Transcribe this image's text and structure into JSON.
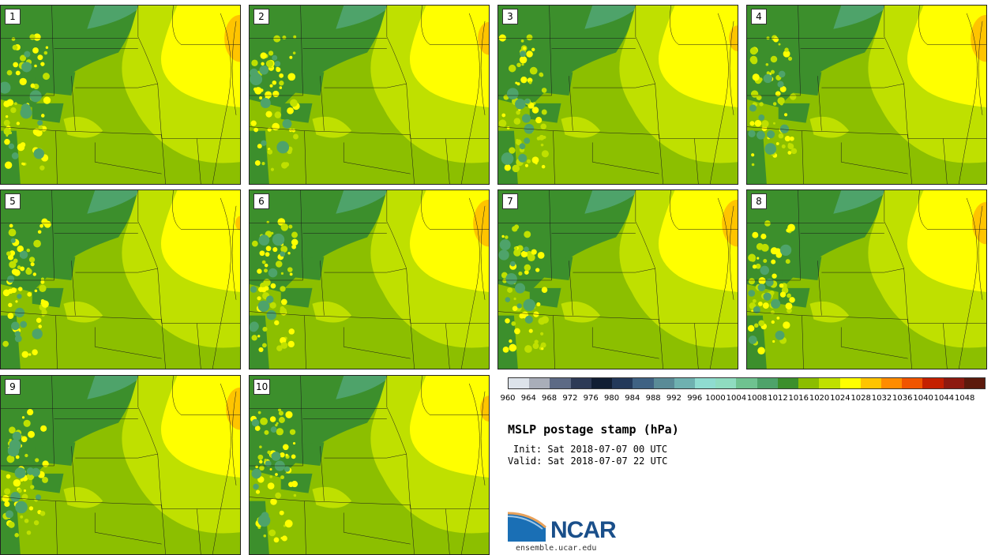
{
  "panels": [
    {
      "label": "1",
      "high": 1.0
    },
    {
      "label": "2",
      "high": 0.7
    },
    {
      "label": "3",
      "high": 0.55
    },
    {
      "label": "4",
      "high": 1.0
    },
    {
      "label": "5",
      "high": 0.3
    },
    {
      "label": "6",
      "high": 1.0
    },
    {
      "label": "7",
      "high": 1.0
    },
    {
      "label": "8",
      "high": 0.9
    },
    {
      "label": "9",
      "high": 0.9
    },
    {
      "label": "10",
      "high": 0.55
    }
  ],
  "colorbar": {
    "colors": [
      "#dde3ea",
      "#a9aeb9",
      "#5d6a85",
      "#2d3a56",
      "#111e33",
      "#23395a",
      "#3f6283",
      "#5a8b97",
      "#6fb1b0",
      "#8fdcd0",
      "#8fdcc0",
      "#6fc290",
      "#4ea36a",
      "#3c8f2c",
      "#8bbd00",
      "#bfe000",
      "#ffff00",
      "#ffc400",
      "#ff8c00",
      "#f05500",
      "#c42000",
      "#8d1a10",
      "#5c1a0c"
    ],
    "ticks": [
      "960",
      "964",
      "968",
      "972",
      "976",
      "980",
      "984",
      "988",
      "992",
      "996",
      "1000",
      "1004",
      "1008",
      "1012",
      "1016",
      "1020",
      "1024",
      "1028",
      "1032",
      "1036",
      "1040",
      "1044",
      "1048"
    ]
  },
  "title": "MSLP postage stamp (hPa)",
  "init": "Init: Sat 2018-07-07 00 UTC",
  "valid": "Valid: Sat 2018-07-07 22 UTC",
  "logo": {
    "text": "NCAR",
    "site": "ensemble.ucar.edu"
  }
}
